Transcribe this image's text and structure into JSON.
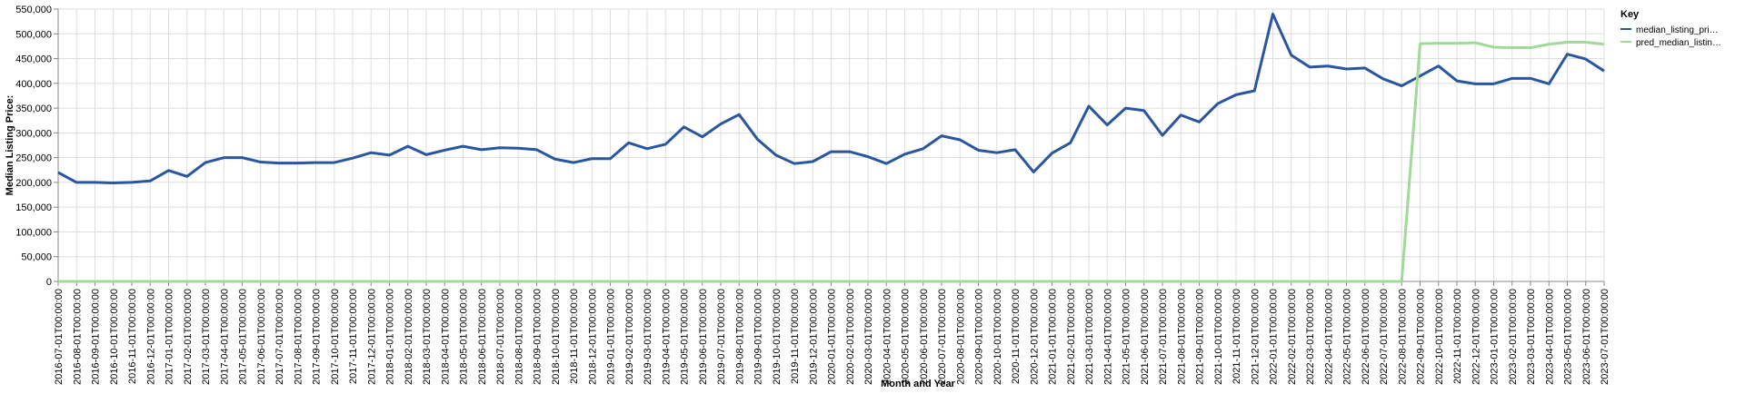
{
  "chart_data": {
    "type": "line",
    "x_label": "Month and Year",
    "y_label": "Median Listing Price:",
    "legend_title": "Key",
    "legend_position": "right",
    "grid": true,
    "categories": [
      "2016-07-01T00:00:00",
      "2016-08-01T00:00:00",
      "2016-09-01T00:00:00",
      "2016-10-01T00:00:00",
      "2016-11-01T00:00:00",
      "2016-12-01T00:00:00",
      "2017-01-01T00:00:00",
      "2017-02-01T00:00:00",
      "2017-03-01T00:00:00",
      "2017-04-01T00:00:00",
      "2017-05-01T00:00:00",
      "2017-06-01T00:00:00",
      "2017-07-01T00:00:00",
      "2017-08-01T00:00:00",
      "2017-09-01T00:00:00",
      "2017-10-01T00:00:00",
      "2017-11-01T00:00:00",
      "2017-12-01T00:00:00",
      "2018-01-01T00:00:00",
      "2018-02-01T00:00:00",
      "2018-03-01T00:00:00",
      "2018-04-01T00:00:00",
      "2018-05-01T00:00:00",
      "2018-06-01T00:00:00",
      "2018-07-01T00:00:00",
      "2018-08-01T00:00:00",
      "2018-09-01T00:00:00",
      "2018-10-01T00:00:00",
      "2018-11-01T00:00:00",
      "2018-12-01T00:00:00",
      "2019-01-01T00:00:00",
      "2019-02-01T00:00:00",
      "2019-03-01T00:00:00",
      "2019-04-01T00:00:00",
      "2019-05-01T00:00:00",
      "2019-06-01T00:00:00",
      "2019-07-01T00:00:00",
      "2019-08-01T00:00:00",
      "2019-09-01T00:00:00",
      "2019-10-01T00:00:00",
      "2019-11-01T00:00:00",
      "2019-12-01T00:00:00",
      "2020-01-01T00:00:00",
      "2020-02-01T00:00:00",
      "2020-03-01T00:00:00",
      "2020-04-01T00:00:00",
      "2020-05-01T00:00:00",
      "2020-06-01T00:00:00",
      "2020-07-01T00:00:00",
      "2020-08-01T00:00:00",
      "2020-09-01T00:00:00",
      "2020-10-01T00:00:00",
      "2020-11-01T00:00:00",
      "2020-12-01T00:00:00",
      "2021-01-01T00:00:00",
      "2021-02-01T00:00:00",
      "2021-03-01T00:00:00",
      "2021-04-01T00:00:00",
      "2021-05-01T00:00:00",
      "2021-06-01T00:00:00",
      "2021-07-01T00:00:00",
      "2021-08-01T00:00:00",
      "2021-09-01T00:00:00",
      "2021-10-01T00:00:00",
      "2021-11-01T00:00:00",
      "2021-12-01T00:00:00",
      "2022-01-01T00:00:00",
      "2022-02-01T00:00:00",
      "2022-03-01T00:00:00",
      "2022-04-01T00:00:00",
      "2022-05-01T00:00:00",
      "2022-06-01T00:00:00",
      "2022-07-01T00:00:00",
      "2022-08-01T00:00:00",
      "2022-09-01T00:00:00",
      "2022-10-01T00:00:00",
      "2022-11-01T00:00:00",
      "2022-12-01T00:00:00",
      "2023-01-01T00:00:00",
      "2023-02-01T00:00:00",
      "2023-03-01T00:00:00",
      "2023-04-01T00:00:00",
      "2023-05-01T00:00:00",
      "2023-06-01T00:00:00",
      "2023-07-01T00:00:00"
    ],
    "series": [
      {
        "name": "median_listing_pri…",
        "color": "#2a56a0",
        "values": [
          220000,
          200000,
          200000,
          199000,
          200000,
          203000,
          224000,
          212000,
          240000,
          250000,
          250000,
          241000,
          239000,
          239000,
          240000,
          240000,
          249000,
          260000,
          255000,
          273000,
          256000,
          265000,
          273000,
          266000,
          270000,
          269000,
          266000,
          247000,
          240000,
          248000,
          248000,
          280000,
          268000,
          277000,
          312000,
          292000,
          318000,
          337000,
          287000,
          255000,
          238000,
          242000,
          262000,
          262000,
          252000,
          238000,
          257000,
          268000,
          294000,
          286000,
          265000,
          260000,
          266000,
          221000,
          259000,
          280000,
          354000,
          316000,
          350000,
          345000,
          295000,
          336000,
          322000,
          359000,
          377000,
          385000,
          540000,
          457000,
          433000,
          435000,
          429000,
          431000,
          409000,
          395000,
          415000,
          435000,
          405000,
          399000,
          399000,
          410000,
          410000,
          399000,
          459000,
          449000,
          425000
        ]
      },
      {
        "name": "pred_median_listin…",
        "color": "#a1d99b",
        "values": [
          0,
          0,
          0,
          0,
          0,
          0,
          0,
          0,
          0,
          0,
          0,
          0,
          0,
          0,
          0,
          0,
          0,
          0,
          0,
          0,
          0,
          0,
          0,
          0,
          0,
          0,
          0,
          0,
          0,
          0,
          0,
          0,
          0,
          0,
          0,
          0,
          0,
          0,
          0,
          0,
          0,
          0,
          0,
          0,
          0,
          0,
          0,
          0,
          0,
          0,
          0,
          0,
          0,
          0,
          0,
          0,
          0,
          0,
          0,
          0,
          0,
          0,
          0,
          0,
          0,
          0,
          0,
          0,
          0,
          0,
          0,
          0,
          0,
          0,
          480000,
          481000,
          481000,
          482000,
          473000,
          472000,
          472000,
          479000,
          483000,
          483000,
          479000
        ]
      }
    ],
    "ylim": [
      0,
      550000
    ],
    "yticks": [
      0,
      {
        "value": 50000,
        "label": "50,000"
      },
      {
        "value": 100000,
        "label": "100,000"
      },
      {
        "value": 150000,
        "label": "150,000"
      },
      {
        "value": 200000,
        "label": "200,000"
      },
      {
        "value": 250000,
        "label": "250,000"
      },
      {
        "value": 300000,
        "label": "300,000"
      },
      {
        "value": 350000,
        "label": "350,000"
      },
      {
        "value": 400000,
        "label": "400,000"
      },
      {
        "value": 450000,
        "label": "450,000"
      },
      {
        "value": 500000,
        "label": "500,000"
      },
      {
        "value": 550000,
        "label": "550,000"
      }
    ]
  }
}
